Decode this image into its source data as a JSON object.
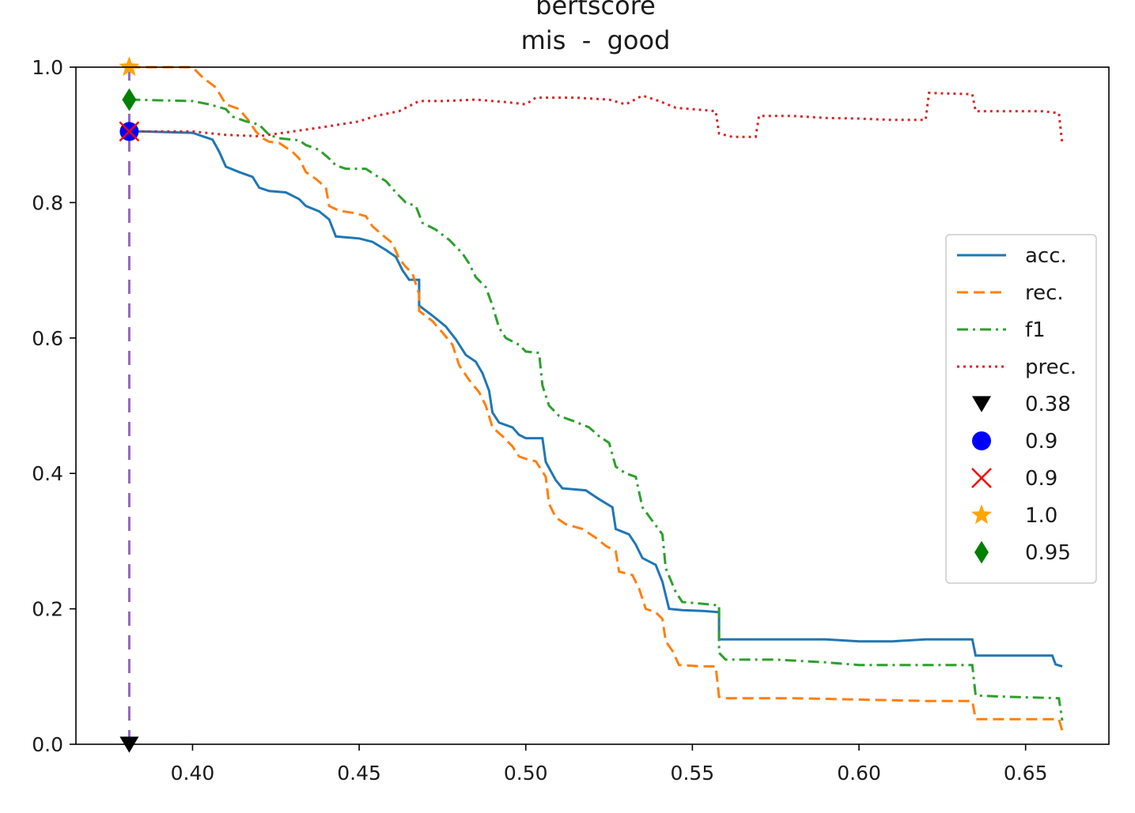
{
  "chart_data": {
    "type": "line",
    "title": "bertscore",
    "subtitle": "mis  -  good",
    "xlabel": "",
    "ylabel": "",
    "xlim": [
      0.365,
      0.675
    ],
    "ylim": [
      0.0,
      1.0
    ],
    "xticks": [
      0.4,
      0.45,
      0.5,
      0.55,
      0.6,
      0.65
    ],
    "xtick_labels": [
      "0.40",
      "0.45",
      "0.50",
      "0.55",
      "0.60",
      "0.65"
    ],
    "yticks": [
      0.0,
      0.2,
      0.4,
      0.6,
      0.8,
      1.0
    ],
    "ytick_labels": [
      "0.0",
      "0.2",
      "0.4",
      "0.6",
      "0.8",
      "1.0"
    ],
    "grid": false,
    "legend_position": "center-right",
    "series": [
      {
        "name": "acc.",
        "color": "#1f77b4",
        "style": "solid",
        "points": [
          [
            0.381,
            0.905
          ],
          [
            0.385,
            0.905
          ],
          [
            0.4,
            0.903
          ],
          [
            0.403,
            0.898
          ],
          [
            0.406,
            0.893
          ],
          [
            0.408,
            0.875
          ],
          [
            0.41,
            0.853
          ],
          [
            0.414,
            0.845
          ],
          [
            0.418,
            0.838
          ],
          [
            0.42,
            0.822
          ],
          [
            0.423,
            0.817
          ],
          [
            0.428,
            0.815
          ],
          [
            0.432,
            0.805
          ],
          [
            0.434,
            0.795
          ],
          [
            0.438,
            0.787
          ],
          [
            0.441,
            0.775
          ],
          [
            0.443,
            0.75
          ],
          [
            0.45,
            0.747
          ],
          [
            0.454,
            0.742
          ],
          [
            0.458,
            0.73
          ],
          [
            0.461,
            0.72
          ],
          [
            0.463,
            0.7
          ],
          [
            0.465,
            0.686
          ],
          [
            0.468,
            0.686
          ],
          [
            0.468,
            0.648
          ],
          [
            0.472,
            0.633
          ],
          [
            0.476,
            0.617
          ],
          [
            0.479,
            0.598
          ],
          [
            0.482,
            0.575
          ],
          [
            0.485,
            0.565
          ],
          [
            0.487,
            0.548
          ],
          [
            0.489,
            0.522
          ],
          [
            0.49,
            0.49
          ],
          [
            0.492,
            0.475
          ],
          [
            0.496,
            0.468
          ],
          [
            0.498,
            0.457
          ],
          [
            0.5,
            0.452
          ],
          [
            0.505,
            0.452
          ],
          [
            0.506,
            0.417
          ],
          [
            0.509,
            0.39
          ],
          [
            0.511,
            0.378
          ],
          [
            0.518,
            0.375
          ],
          [
            0.522,
            0.362
          ],
          [
            0.526,
            0.35
          ],
          [
            0.527,
            0.318
          ],
          [
            0.531,
            0.31
          ],
          [
            0.533,
            0.295
          ],
          [
            0.535,
            0.275
          ],
          [
            0.539,
            0.265
          ],
          [
            0.541,
            0.24
          ],
          [
            0.543,
            0.2
          ],
          [
            0.547,
            0.198
          ],
          [
            0.553,
            0.197
          ],
          [
            0.558,
            0.195
          ],
          [
            0.558,
            0.155
          ],
          [
            0.57,
            0.155
          ],
          [
            0.58,
            0.155
          ],
          [
            0.59,
            0.155
          ],
          [
            0.6,
            0.152
          ],
          [
            0.61,
            0.152
          ],
          [
            0.62,
            0.155
          ],
          [
            0.634,
            0.155
          ],
          [
            0.635,
            0.131
          ],
          [
            0.65,
            0.131
          ],
          [
            0.658,
            0.131
          ],
          [
            0.659,
            0.118
          ],
          [
            0.661,
            0.115
          ]
        ]
      },
      {
        "name": "rec.",
        "color": "#ff7f0e",
        "style": "dashed",
        "points": [
          [
            0.381,
            1.0
          ],
          [
            0.4,
            1.0
          ],
          [
            0.403,
            0.985
          ],
          [
            0.407,
            0.97
          ],
          [
            0.41,
            0.945
          ],
          [
            0.414,
            0.938
          ],
          [
            0.417,
            0.92
          ],
          [
            0.419,
            0.905
          ],
          [
            0.421,
            0.895
          ],
          [
            0.423,
            0.89
          ],
          [
            0.426,
            0.888
          ],
          [
            0.43,
            0.875
          ],
          [
            0.432,
            0.865
          ],
          [
            0.434,
            0.845
          ],
          [
            0.437,
            0.835
          ],
          [
            0.44,
            0.822
          ],
          [
            0.441,
            0.795
          ],
          [
            0.444,
            0.788
          ],
          [
            0.448,
            0.785
          ],
          [
            0.452,
            0.78
          ],
          [
            0.454,
            0.765
          ],
          [
            0.457,
            0.752
          ],
          [
            0.46,
            0.74
          ],
          [
            0.462,
            0.717
          ],
          [
            0.464,
            0.705
          ],
          [
            0.466,
            0.695
          ],
          [
            0.468,
            0.665
          ],
          [
            0.468,
            0.64
          ],
          [
            0.472,
            0.625
          ],
          [
            0.475,
            0.608
          ],
          [
            0.478,
            0.59
          ],
          [
            0.48,
            0.56
          ],
          [
            0.483,
            0.538
          ],
          [
            0.486,
            0.52
          ],
          [
            0.488,
            0.5
          ],
          [
            0.49,
            0.468
          ],
          [
            0.493,
            0.455
          ],
          [
            0.496,
            0.44
          ],
          [
            0.498,
            0.425
          ],
          [
            0.501,
            0.42
          ],
          [
            0.503,
            0.418
          ],
          [
            0.506,
            0.395
          ],
          [
            0.507,
            0.355
          ],
          [
            0.509,
            0.335
          ],
          [
            0.512,
            0.325
          ],
          [
            0.517,
            0.318
          ],
          [
            0.521,
            0.305
          ],
          [
            0.524,
            0.293
          ],
          [
            0.527,
            0.285
          ],
          [
            0.528,
            0.255
          ],
          [
            0.532,
            0.25
          ],
          [
            0.534,
            0.23
          ],
          [
            0.536,
            0.2
          ],
          [
            0.539,
            0.195
          ],
          [
            0.541,
            0.185
          ],
          [
            0.542,
            0.152
          ],
          [
            0.544,
            0.138
          ],
          [
            0.546,
            0.117
          ],
          [
            0.553,
            0.115
          ],
          [
            0.557,
            0.115
          ],
          [
            0.558,
            0.07
          ],
          [
            0.56,
            0.068
          ],
          [
            0.58,
            0.068
          ],
          [
            0.6,
            0.066
          ],
          [
            0.62,
            0.064
          ],
          [
            0.634,
            0.064
          ],
          [
            0.635,
            0.037
          ],
          [
            0.65,
            0.037
          ],
          [
            0.66,
            0.037
          ],
          [
            0.661,
            0.02
          ]
        ]
      },
      {
        "name": "f1",
        "color": "#2ca02c",
        "style": "dashdot",
        "points": [
          [
            0.381,
            0.952
          ],
          [
            0.4,
            0.95
          ],
          [
            0.405,
            0.945
          ],
          [
            0.41,
            0.938
          ],
          [
            0.412,
            0.927
          ],
          [
            0.416,
            0.92
          ],
          [
            0.42,
            0.915
          ],
          [
            0.423,
            0.9
          ],
          [
            0.426,
            0.895
          ],
          [
            0.432,
            0.892
          ],
          [
            0.434,
            0.885
          ],
          [
            0.438,
            0.878
          ],
          [
            0.441,
            0.865
          ],
          [
            0.443,
            0.855
          ],
          [
            0.446,
            0.85
          ],
          [
            0.452,
            0.85
          ],
          [
            0.455,
            0.84
          ],
          [
            0.458,
            0.832
          ],
          [
            0.461,
            0.815
          ],
          [
            0.464,
            0.8
          ],
          [
            0.467,
            0.795
          ],
          [
            0.469,
            0.77
          ],
          [
            0.473,
            0.76
          ],
          [
            0.477,
            0.745
          ],
          [
            0.481,
            0.725
          ],
          [
            0.483,
            0.71
          ],
          [
            0.485,
            0.69
          ],
          [
            0.488,
            0.675
          ],
          [
            0.49,
            0.648
          ],
          [
            0.492,
            0.615
          ],
          [
            0.494,
            0.6
          ],
          [
            0.498,
            0.59
          ],
          [
            0.5,
            0.58
          ],
          [
            0.504,
            0.578
          ],
          [
            0.505,
            0.53
          ],
          [
            0.507,
            0.5
          ],
          [
            0.51,
            0.485
          ],
          [
            0.514,
            0.478
          ],
          [
            0.519,
            0.468
          ],
          [
            0.522,
            0.455
          ],
          [
            0.525,
            0.445
          ],
          [
            0.527,
            0.41
          ],
          [
            0.53,
            0.4
          ],
          [
            0.533,
            0.395
          ],
          [
            0.535,
            0.35
          ],
          [
            0.538,
            0.33
          ],
          [
            0.541,
            0.31
          ],
          [
            0.542,
            0.26
          ],
          [
            0.545,
            0.225
          ],
          [
            0.547,
            0.21
          ],
          [
            0.552,
            0.208
          ],
          [
            0.558,
            0.205
          ],
          [
            0.558,
            0.135
          ],
          [
            0.56,
            0.125
          ],
          [
            0.575,
            0.125
          ],
          [
            0.59,
            0.121
          ],
          [
            0.6,
            0.117
          ],
          [
            0.62,
            0.117
          ],
          [
            0.634,
            0.117
          ],
          [
            0.635,
            0.072
          ],
          [
            0.645,
            0.07
          ],
          [
            0.66,
            0.068
          ],
          [
            0.661,
            0.035
          ]
        ]
      },
      {
        "name": "prec.",
        "color": "#d62728",
        "style": "dotted",
        "points": [
          [
            0.381,
            0.905
          ],
          [
            0.4,
            0.905
          ],
          [
            0.41,
            0.9
          ],
          [
            0.42,
            0.898
          ],
          [
            0.43,
            0.905
          ],
          [
            0.44,
            0.912
          ],
          [
            0.45,
            0.92
          ],
          [
            0.455,
            0.928
          ],
          [
            0.462,
            0.935
          ],
          [
            0.468,
            0.95
          ],
          [
            0.475,
            0.95
          ],
          [
            0.485,
            0.952
          ],
          [
            0.495,
            0.948
          ],
          [
            0.5,
            0.945
          ],
          [
            0.503,
            0.955
          ],
          [
            0.515,
            0.955
          ],
          [
            0.525,
            0.952
          ],
          [
            0.53,
            0.945
          ],
          [
            0.535,
            0.958
          ],
          [
            0.54,
            0.95
          ],
          [
            0.545,
            0.94
          ],
          [
            0.55,
            0.938
          ],
          [
            0.557,
            0.935
          ],
          [
            0.558,
            0.902
          ],
          [
            0.562,
            0.897
          ],
          [
            0.569,
            0.897
          ],
          [
            0.57,
            0.928
          ],
          [
            0.58,
            0.928
          ],
          [
            0.59,
            0.925
          ],
          [
            0.6,
            0.924
          ],
          [
            0.61,
            0.922
          ],
          [
            0.62,
            0.922
          ],
          [
            0.621,
            0.962
          ],
          [
            0.634,
            0.96
          ],
          [
            0.635,
            0.935
          ],
          [
            0.645,
            0.935
          ],
          [
            0.655,
            0.935
          ],
          [
            0.66,
            0.932
          ],
          [
            0.661,
            0.887
          ]
        ]
      }
    ],
    "vline": {
      "x": 0.381,
      "color": "#9467bd",
      "style": "dashed"
    },
    "markers": [
      {
        "label": "0.38",
        "shape": "triangle-down",
        "color": "#000000",
        "x": 0.381,
        "y": 0.0
      },
      {
        "label": "0.9",
        "shape": "circle",
        "color": "#0000ff",
        "x": 0.381,
        "y": 0.905
      },
      {
        "label": "0.9",
        "shape": "x",
        "color": "#ff0000",
        "x": 0.381,
        "y": 0.905
      },
      {
        "label": "1.0",
        "shape": "star",
        "color": "#ffa500",
        "x": 0.381,
        "y": 1.0
      },
      {
        "label": "0.95",
        "shape": "diamond",
        "color": "#008000",
        "x": 0.381,
        "y": 0.952
      }
    ]
  }
}
